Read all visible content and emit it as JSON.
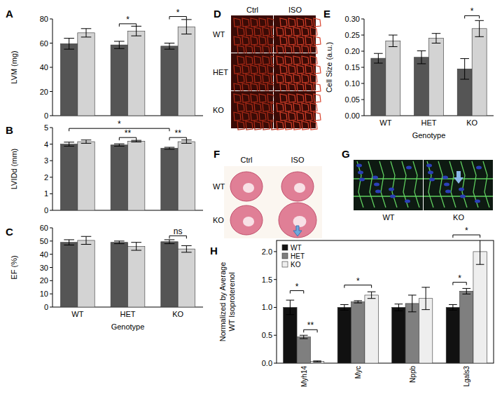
{
  "chart_data": [
    {
      "type": "bar",
      "title": "A",
      "y_label": "LVM (mg)",
      "categories": [
        "WT",
        "HET",
        "KO"
      ],
      "tick_labels": "y",
      "ylim": [
        0,
        80
      ],
      "yticks": [
        0,
        20,
        40,
        60,
        80
      ],
      "series": [
        {
          "color": "#555555",
          "values": [
            59.5,
            58.5,
            57.5
          ],
          "errors": [
            4.5,
            3,
            2.5
          ]
        },
        {
          "color": "#d3d3d3",
          "values": [
            68.5,
            70,
            73.5
          ],
          "errors": [
            3.5,
            4,
            6
          ]
        }
      ],
      "annotations": [
        {
          "text": "*",
          "from": {
            "category": 1,
            "series": 0
          },
          "to": {
            "category": 1,
            "series": 1
          },
          "y": 76
        },
        {
          "text": "*",
          "from": {
            "category": 2,
            "series": 0
          },
          "to": {
            "category": 2,
            "series": 1
          },
          "y": 82
        }
      ]
    },
    {
      "type": "bar",
      "title": "B",
      "y_label": "LVIDd (mm)",
      "categories": [
        "WT",
        "HET",
        "KO"
      ],
      "tick_labels": "y",
      "ylim": [
        0,
        5
      ],
      "yticks": [
        0,
        1,
        2,
        3,
        4,
        5
      ],
      "series": [
        {
          "color": "#555555",
          "values": [
            4.0,
            3.95,
            3.75
          ],
          "errors": [
            0.12,
            0.07,
            0.06
          ]
        },
        {
          "color": "#d3d3d3",
          "values": [
            4.15,
            4.18,
            4.15
          ],
          "errors": [
            0.1,
            0.05,
            0.1
          ]
        }
      ],
      "annotations": [
        {
          "text": "*",
          "from": {
            "category": 0,
            "series": 0
          },
          "to": {
            "category": 2,
            "series": 0
          },
          "y": 4.95
        },
        {
          "text": "**",
          "from": {
            "category": 1,
            "series": 0
          },
          "to": {
            "category": 1,
            "series": 1
          },
          "y": 4.4
        },
        {
          "text": "**",
          "from": {
            "category": 2,
            "series": 0
          },
          "to": {
            "category": 2,
            "series": 1
          },
          "y": 4.4
        }
      ]
    },
    {
      "type": "bar",
      "title": "C",
      "y_label": "EF (%)",
      "x_label": "Genotype",
      "categories": [
        "WT",
        "HET",
        "KO"
      ],
      "ylim": [
        0,
        60
      ],
      "yticks": [
        0,
        10,
        20,
        30,
        40,
        50,
        60
      ],
      "series": [
        {
          "color": "#555555",
          "values": [
            49,
            49,
            49.5
          ],
          "errors": [
            2,
            1,
            1.5
          ]
        },
        {
          "color": "#d3d3d3",
          "values": [
            50.5,
            46,
            44
          ],
          "errors": [
            3,
            3,
            2.5
          ]
        }
      ],
      "annotations": [
        {
          "text": "ns",
          "from": {
            "category": 2,
            "series": 0
          },
          "to": {
            "category": 2,
            "series": 1
          },
          "y": 54
        }
      ]
    },
    {
      "type": "bar",
      "title": "E",
      "y_label": "Cell Size (a.u.)",
      "x_label": "Genotype",
      "categories": [
        "WT",
        "HET",
        "KO"
      ],
      "ylim": [
        0,
        0.3
      ],
      "yticks": [
        {
          "value": 0,
          "label": "0.00"
        },
        0.05,
        {
          "value": 0.1,
          "label": "0.10"
        },
        0.15,
        {
          "value": 0.2,
          "label": "0.20"
        },
        0.25,
        {
          "value": 0.3,
          "label": "0.30"
        }
      ],
      "series": [
        {
          "color": "#555555",
          "values": [
            0.178,
            0.181,
            0.145
          ],
          "errors": [
            0.015,
            0.02,
            0.032
          ]
        },
        {
          "color": "#d3d3d3",
          "values": [
            0.232,
            0.24,
            0.27
          ],
          "errors": [
            0.018,
            0.015,
            0.025
          ]
        }
      ],
      "annotations": [
        {
          "text": "*",
          "from": {
            "category": 2,
            "series": 0
          },
          "to": {
            "category": 2,
            "series": 1
          },
          "y": 0.31
        }
      ]
    },
    {
      "type": "bar",
      "title": "H",
      "y_label": [
        "Normalized by Average",
        "WT Isoproterenol"
      ],
      "categories": [
        "Myh14",
        "Myc",
        "Nppb",
        "Lgals3"
      ],
      "ylim": [
        0,
        2.2
      ],
      "yticks": [
        {
          "value": 0,
          "label": "0.0"
        },
        0.5,
        {
          "value": 1,
          "label": "1.0"
        },
        1.5,
        {
          "value": 2,
          "label": "2.0"
        }
      ],
      "legend": "top-left",
      "series": [
        {
          "name": "WT",
          "color": "#111111",
          "values": [
            1.0,
            1.0,
            1.0,
            1.0
          ],
          "errors": [
            0.13,
            0.05,
            0.06,
            0.05
          ]
        },
        {
          "name": "HET",
          "color": "#7f7f7f",
          "values": [
            0.47,
            1.1,
            1.07,
            1.29
          ],
          "errors": [
            0.03,
            0.02,
            0.15,
            0.05
          ]
        },
        {
          "name": "KO",
          "color": "#eeeeee",
          "values": [
            0.03,
            1.22,
            1.16,
            2.0
          ],
          "errors": [
            0.01,
            0.06,
            0.2,
            0.23
          ]
        }
      ],
      "annotations": [
        {
          "text": "*",
          "from": {
            "category": 0,
            "series": 0
          },
          "to": {
            "category": 0,
            "series": 1
          },
          "y": 1.3
        },
        {
          "text": "**",
          "from": {
            "category": 0,
            "series": 1
          },
          "to": {
            "category": 0,
            "series": 2
          },
          "y": 0.6
        },
        {
          "text": "*",
          "from": {
            "category": 1,
            "series": 0
          },
          "to": {
            "category": 1,
            "series": 2
          },
          "y": 1.4
        },
        {
          "text": "*",
          "from": {
            "category": 3,
            "series": 0
          },
          "to": {
            "category": 3,
            "series": 1
          },
          "y": 1.45
        },
        {
          "text": "*",
          "from": {
            "category": 3,
            "series": 0
          },
          "to": {
            "category": 3,
            "series": 2
          },
          "y": 2.3
        }
      ]
    }
  ],
  "images": [
    {
      "label": "D",
      "columns": [
        "Ctrl",
        "ISO"
      ],
      "rows": [
        "WT",
        "HET",
        "KO"
      ]
    },
    {
      "label": "F",
      "columns": [
        "Ctrl",
        "ISO"
      ],
      "rows": [
        "WT",
        "KO"
      ]
    },
    {
      "label": "G",
      "columns": [
        "WT",
        "KO"
      ]
    }
  ]
}
